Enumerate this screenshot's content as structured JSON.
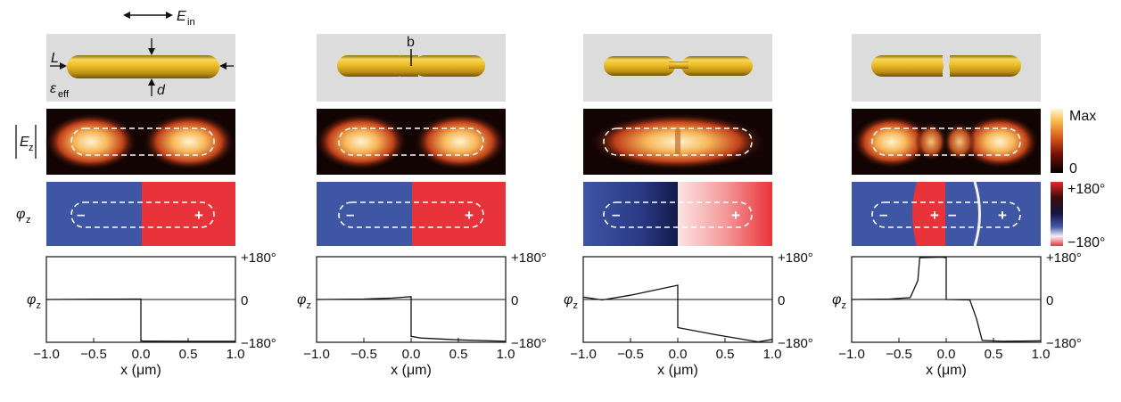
{
  "colors": {
    "schematic_bg": "#dcdcdc",
    "rod_gold": "#e6b523",
    "phase_blue": "#3e56a4",
    "phase_red": "#e9333a",
    "field_black": "#120403"
  },
  "labels": {
    "e_in": "E",
    "e_in_sub": "in",
    "length": "L",
    "diameter": "d",
    "gap": "b",
    "eps": "ε",
    "eps_sub": "eff",
    "ez_row": "E",
    "ez_row_sub": "z",
    "phi_row": "φ",
    "phi_row_sub": "z",
    "sign_minus": "–",
    "sign_plus": "+"
  },
  "colorbar_field": {
    "max": "Max",
    "min": "0"
  },
  "colorbar_phase": {
    "max": "+180°",
    "min": "−180°"
  },
  "panels": [
    {
      "variant": "continuous"
    },
    {
      "variant": "small gap"
    },
    {
      "variant": "bridge"
    },
    {
      "variant": "split"
    }
  ],
  "chart_data": [
    {
      "type": "line",
      "xlabel": "x (μm)",
      "ylabel": "φz",
      "xlim": [
        -1.0,
        1.0
      ],
      "ylim": [
        -180,
        180
      ],
      "x_ticks": [
        "−1.0",
        "−0.5",
        "0.0",
        "0.5",
        "1.0"
      ],
      "y_ticks": [
        "+180°",
        "0",
        "−180°"
      ],
      "series": [
        {
          "x": [
            -1.0,
            -0.5,
            -0.1,
            0.0,
            0.0,
            0.02,
            0.5,
            1.0
          ],
          "values": [
            0,
            1,
            2,
            2,
            -172,
            -175,
            -176,
            -176
          ]
        }
      ]
    },
    {
      "type": "line",
      "xlabel": "x (μm)",
      "ylabel": "φz",
      "xlim": [
        -1.0,
        1.0
      ],
      "ylim": [
        -180,
        180
      ],
      "x_ticks": [
        "−1.0",
        "−0.5",
        "0.0",
        "0.5",
        "1.0"
      ],
      "y_ticks": [
        "+180°",
        "0",
        "−180°"
      ],
      "series": [
        {
          "x": [
            -1.0,
            -0.5,
            -0.2,
            0.0,
            0.0,
            0.1,
            0.5,
            1.0
          ],
          "values": [
            0,
            2,
            6,
            12,
            -155,
            -162,
            -170,
            -176
          ]
        }
      ]
    },
    {
      "type": "line",
      "xlabel": "x (μm)",
      "ylabel": "φz",
      "xlim": [
        -1.0,
        1.0
      ],
      "ylim": [
        -180,
        180
      ],
      "x_ticks": [
        "−1.0",
        "−0.5",
        "0.0",
        "0.5",
        "1.0"
      ],
      "y_ticks": [
        "+180°",
        "0",
        "−180°"
      ],
      "series": [
        {
          "x": [
            -1.0,
            -0.8,
            -0.5,
            0.0,
            0.0,
            0.4,
            0.85,
            1.0
          ],
          "values": [
            10,
            -2,
            18,
            60,
            -118,
            -148,
            -178,
            -168
          ]
        }
      ]
    },
    {
      "type": "line",
      "xlabel": "x (μm)",
      "ylabel": "φz",
      "xlim": [
        -1.0,
        1.0
      ],
      "ylim": [
        -180,
        180
      ],
      "x_ticks": [
        "−1.0",
        "−0.5",
        "0.0",
        "0.5",
        "1.0"
      ],
      "y_ticks": [
        "+180°",
        "0",
        "−180°"
      ],
      "series": [
        {
          "x": [
            -1.0,
            -0.6,
            -0.38,
            -0.3,
            -0.28,
            -0.05,
            0.0,
            0.0,
            0.25,
            0.32,
            0.38,
            0.6,
            1.0
          ],
          "values": [
            0,
            2,
            8,
            80,
            176,
            178,
            176,
            0,
            -2,
            -80,
            -172,
            -176,
            -174
          ]
        }
      ]
    }
  ]
}
